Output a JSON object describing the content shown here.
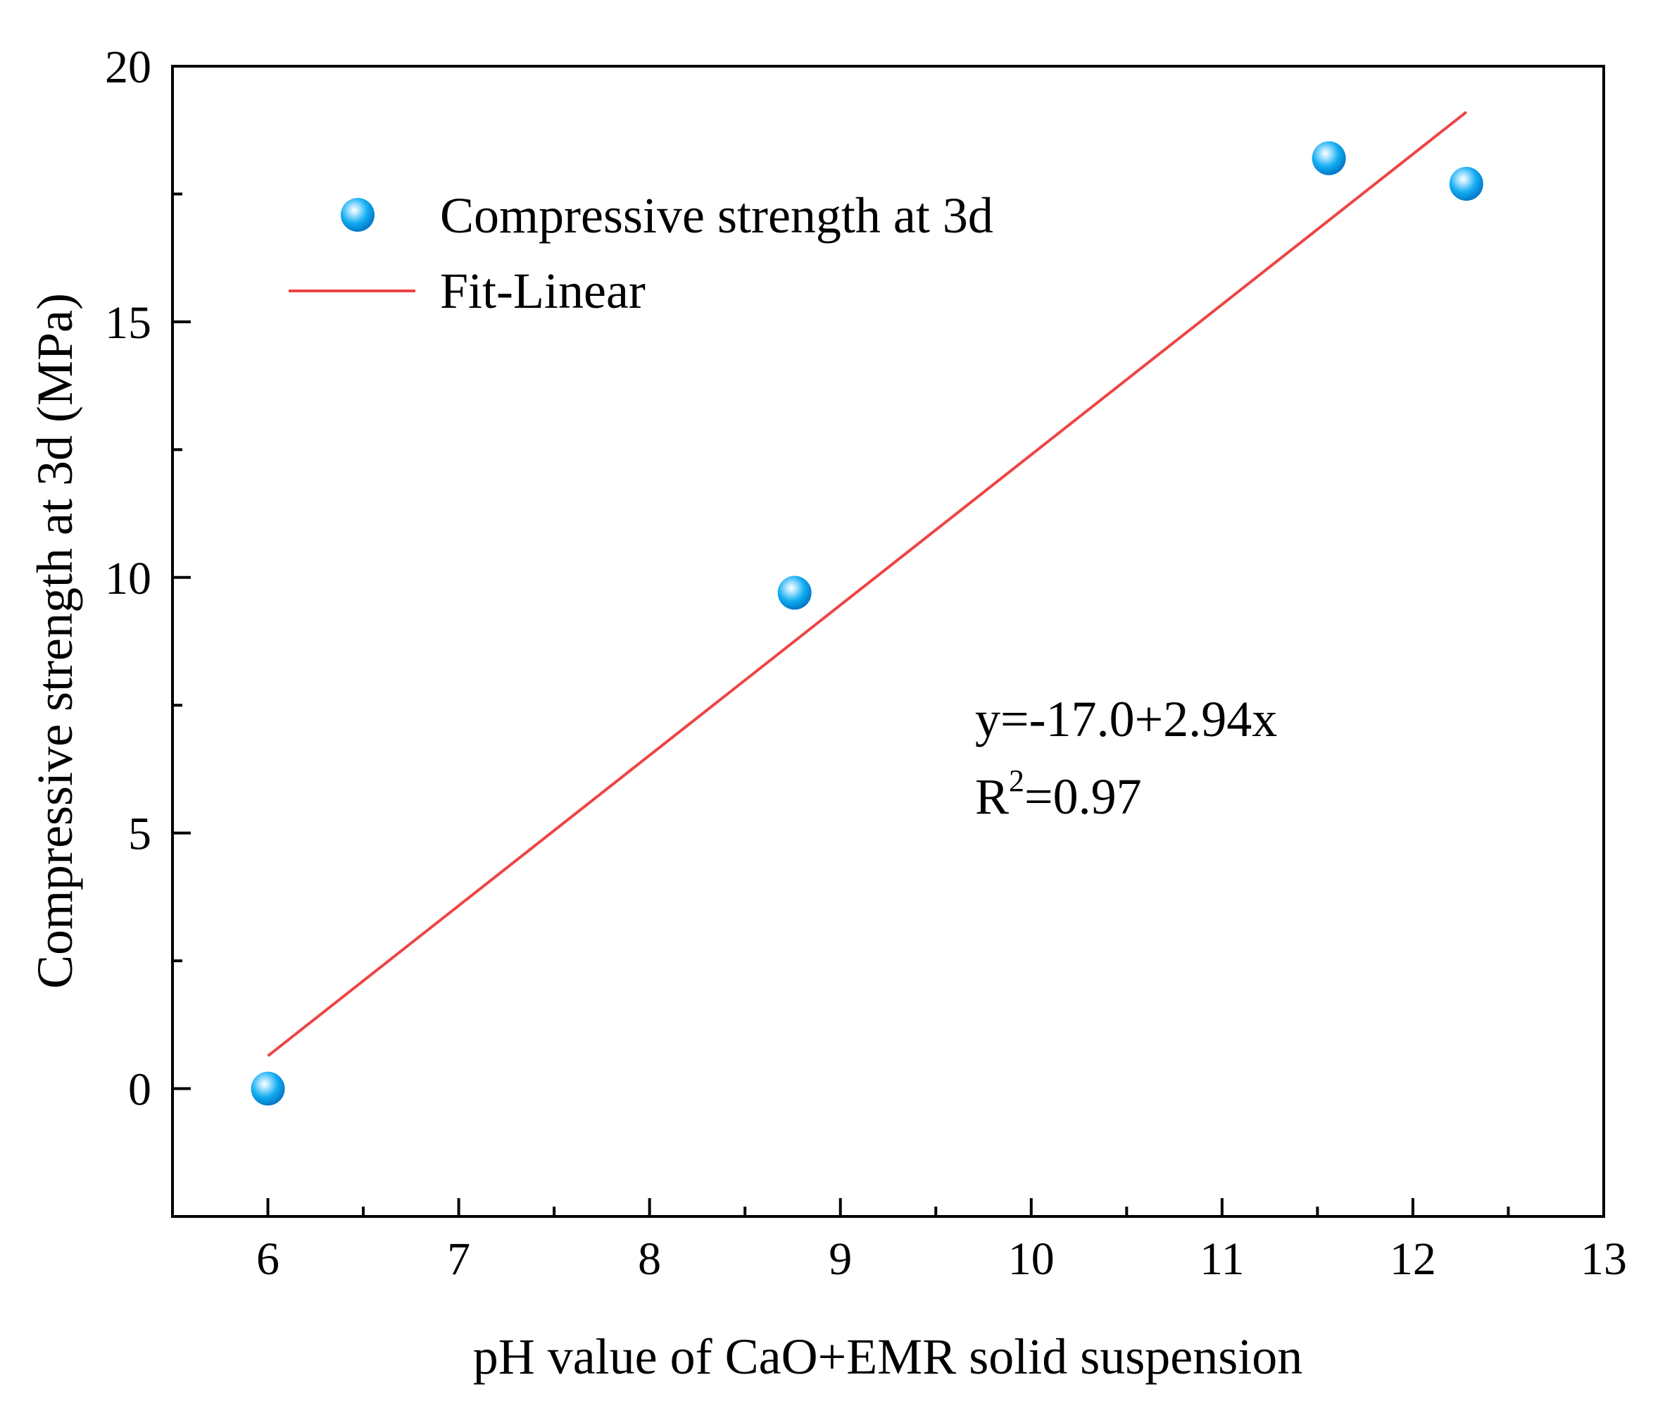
{
  "chart_data": {
    "type": "scatter",
    "title": "",
    "xlabel": "pH value of CaO+EMR solid suspension",
    "ylabel": "Compressive strength at 3d (MPa)",
    "xlim": [
      5.5,
      13
    ],
    "ylim": [
      -2.5,
      20
    ],
    "xticks": [
      6,
      7,
      8,
      9,
      10,
      11,
      12,
      13
    ],
    "yticks": [
      0,
      5,
      10,
      15,
      20
    ],
    "xtick_labels": [
      "6",
      "7",
      "8",
      "9",
      "10",
      "11",
      "12",
      "13"
    ],
    "ytick_labels": [
      "0",
      "5",
      "10",
      "15",
      "20"
    ],
    "legend_position": "top-left",
    "series": [
      {
        "name": "Compressive strength at 3d",
        "kind": "scatter",
        "color": "#00aaf0",
        "x": [
          6.0,
          8.76,
          11.56,
          12.28
        ],
        "y": [
          0.0,
          9.7,
          18.2,
          17.7
        ]
      },
      {
        "name": "Fit-Linear",
        "kind": "line",
        "color": "#ee4444",
        "intercept": -17.0,
        "slope": 2.94,
        "x": [
          6.0,
          12.28
        ]
      }
    ],
    "annotation": {
      "equation": "y=-17.0+2.94x",
      "r2_base": "R",
      "r2_sup": "2",
      "r2_value": "=0.97"
    }
  }
}
